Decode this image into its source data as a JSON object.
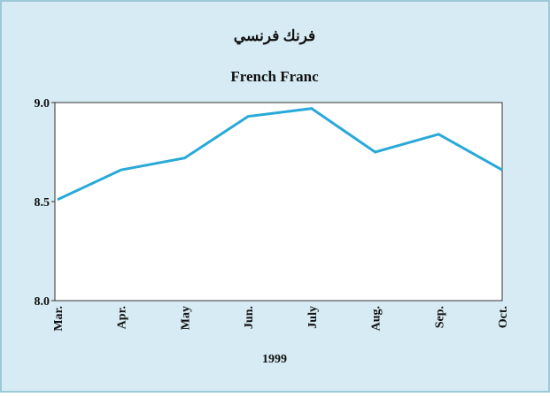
{
  "chart_data": {
    "type": "line",
    "title": "فرنك فرنسي",
    "subtitle": "French Franc",
    "x_label": "1999",
    "categories": [
      "Mar.",
      "Apr.",
      "May",
      "Jun.",
      "July",
      "Aug.",
      "Sep.",
      "Oct."
    ],
    "series": [
      {
        "name": "French Franc",
        "color": "#29a9d8",
        "values": [
          8.51,
          8.66,
          8.72,
          8.93,
          8.97,
          8.75,
          8.84,
          8.66
        ]
      }
    ],
    "ylim": [
      8.0,
      9.0
    ],
    "yticks": [
      {
        "value": 8,
        "label": "8.0"
      },
      {
        "value": 8.5,
        "label": "8.5"
      },
      {
        "value": 9,
        "label": "9.0"
      }
    ]
  }
}
